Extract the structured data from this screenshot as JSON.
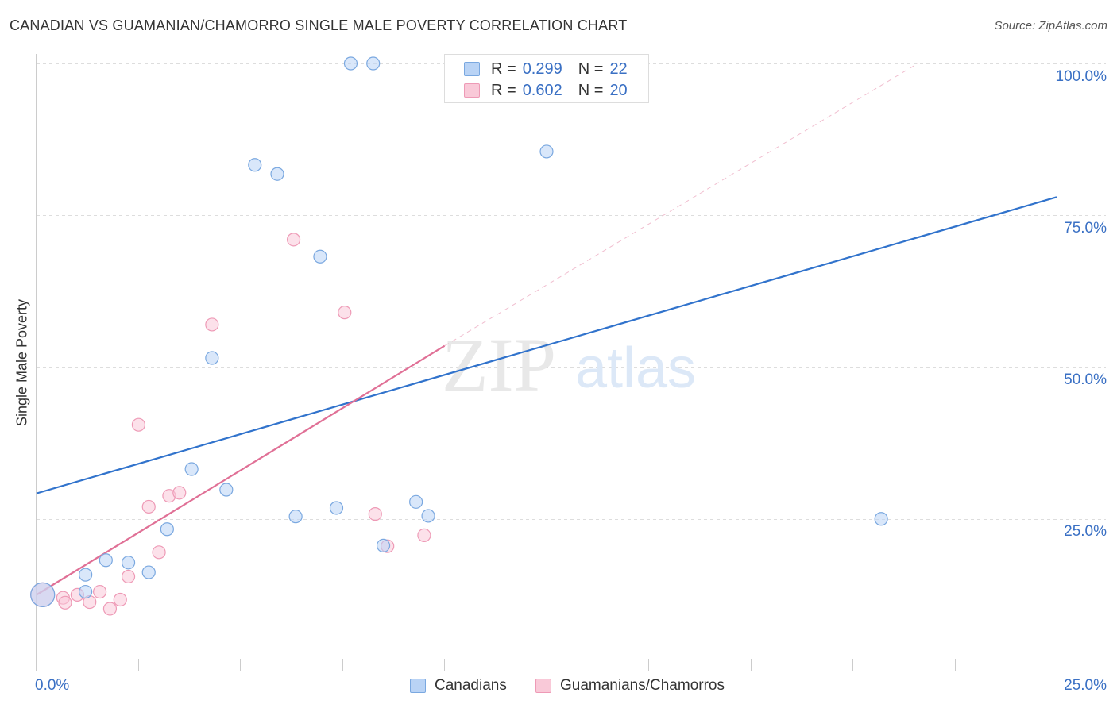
{
  "header": {
    "title": "CANADIAN VS GUAMANIAN/CHAMORRO SINGLE MALE POVERTY CORRELATION CHART",
    "source": "Source: ZipAtlas.com"
  },
  "watermark": {
    "zip": "ZIP",
    "atlas": "atlas"
  },
  "legend": {
    "canadians": {
      "r_label": "R =",
      "r_value": "0.299",
      "n_label": "N =",
      "n_value": "22"
    },
    "guamanians": {
      "r_label": "R =",
      "r_value": "0.602",
      "n_label": "N =",
      "n_value": "20"
    }
  },
  "bottom_legend": {
    "canadians": "Canadians",
    "guamanians": "Guamanians/Chamorros"
  },
  "colors": {
    "canadians_fill": "#b9d3f5",
    "canadians_stroke": "#7aa8e0",
    "canadians_line": "#3173cc",
    "guamanians_fill": "#f9c9d8",
    "guamanians_stroke": "#ee9ab6",
    "guamanians_line": "#e07096",
    "axis_text": "#3a70c4",
    "grid": "#dddddd"
  },
  "chart_data": {
    "type": "scatter",
    "title": "CANADIAN VS GUAMANIAN/CHAMORRO SINGLE MALE POVERTY CORRELATION CHART",
    "xlabel": "",
    "ylabel": "Single Male Poverty",
    "xlim": [
      0,
      25
    ],
    "ylim": [
      0,
      100
    ],
    "x_tick_labels": [
      "0.0%",
      "25.0%"
    ],
    "y_tick_labels": [
      "25.0%",
      "50.0%",
      "75.0%",
      "100.0%"
    ],
    "y_gridlines": [
      25,
      50,
      75,
      100
    ],
    "series": [
      {
        "name": "Canadians",
        "r": 0.299,
        "n": 22,
        "points": [
          {
            "x": 0.15,
            "y": 12.5,
            "large": true
          },
          {
            "x": 1.2,
            "y": 13.0
          },
          {
            "x": 1.2,
            "y": 15.8
          },
          {
            "x": 1.7,
            "y": 18.2
          },
          {
            "x": 2.25,
            "y": 17.8
          },
          {
            "x": 2.75,
            "y": 16.2
          },
          {
            "x": 3.2,
            "y": 23.3
          },
          {
            "x": 3.8,
            "y": 33.2
          },
          {
            "x": 4.3,
            "y": 51.5
          },
          {
            "x": 4.65,
            "y": 29.8
          },
          {
            "x": 5.35,
            "y": 83.3
          },
          {
            "x": 5.9,
            "y": 81.8
          },
          {
            "x": 6.35,
            "y": 25.4
          },
          {
            "x": 6.95,
            "y": 68.2
          },
          {
            "x": 7.35,
            "y": 26.8
          },
          {
            "x": 7.7,
            "y": 100.0
          },
          {
            "x": 8.25,
            "y": 100.0
          },
          {
            "x": 8.5,
            "y": 20.6
          },
          {
            "x": 9.3,
            "y": 27.8
          },
          {
            "x": 9.6,
            "y": 25.5
          },
          {
            "x": 12.5,
            "y": 85.5
          },
          {
            "x": 20.7,
            "y": 25.0
          }
        ],
        "trend": {
          "x": [
            0,
            25
          ],
          "y": [
            29.2,
            78.0
          ]
        }
      },
      {
        "name": "Guamanians/Chamorros",
        "r": 0.602,
        "n": 20,
        "points": [
          {
            "x": 0.15,
            "y": 12.5,
            "large": true
          },
          {
            "x": 0.65,
            "y": 12.0
          },
          {
            "x": 0.7,
            "y": 11.2
          },
          {
            "x": 1.0,
            "y": 12.5
          },
          {
            "x": 1.3,
            "y": 11.3
          },
          {
            "x": 1.55,
            "y": 13.0
          },
          {
            "x": 1.8,
            "y": 10.2
          },
          {
            "x": 2.05,
            "y": 11.7
          },
          {
            "x": 2.25,
            "y": 15.5
          },
          {
            "x": 2.5,
            "y": 40.5
          },
          {
            "x": 2.75,
            "y": 27.0
          },
          {
            "x": 3.0,
            "y": 19.5
          },
          {
            "x": 3.25,
            "y": 28.8
          },
          {
            "x": 3.5,
            "y": 29.3
          },
          {
            "x": 4.3,
            "y": 57.0
          },
          {
            "x": 6.3,
            "y": 71.0
          },
          {
            "x": 7.55,
            "y": 59.0
          },
          {
            "x": 8.3,
            "y": 25.8
          },
          {
            "x": 8.6,
            "y": 20.5
          },
          {
            "x": 9.5,
            "y": 22.3
          }
        ],
        "trend": {
          "x": [
            0,
            10
          ],
          "y": [
            12.5,
            53.5
          ]
        },
        "trend_extension": {
          "x": [
            10,
            21.6
          ],
          "y": [
            53.5,
            100.0
          ]
        }
      }
    ]
  }
}
